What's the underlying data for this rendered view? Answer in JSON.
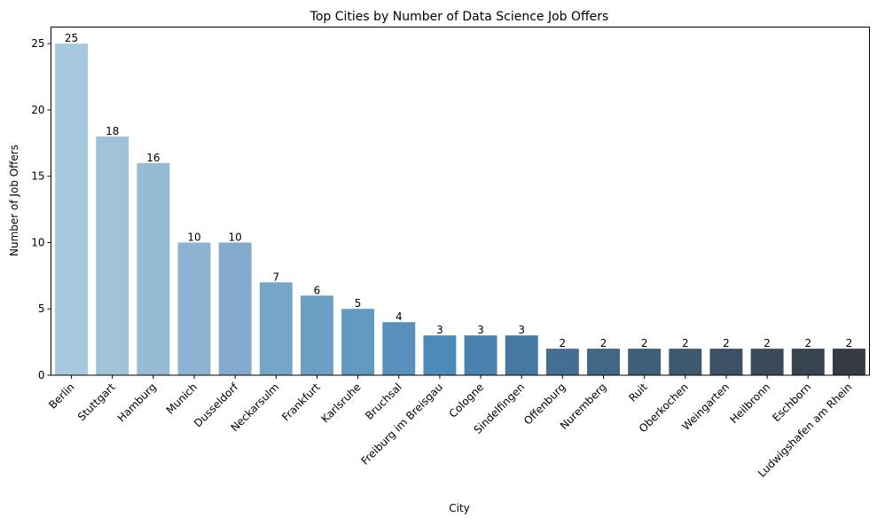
{
  "chart_data": {
    "type": "bar",
    "title": "Top Cities by Number of Data Science Job Offers",
    "xlabel": "City",
    "ylabel": "Number of Job Offers",
    "ylim": [
      0,
      26.25
    ],
    "yticks": [
      0,
      5,
      10,
      15,
      20,
      25
    ],
    "grid": false,
    "categories": [
      "Berlin",
      "Stuttgart",
      "Hamburg",
      "Munich",
      "Dusseldorf",
      "Neckarsulm",
      "Frankfurt",
      "Karlsruhe",
      "Bruchsal",
      "Freiburg im Breisgau",
      "Cologne",
      "Sindelfingen",
      "Offenburg",
      "Nuremberg",
      "Ruit",
      "Oberkochen",
      "Weingarten",
      "Heilbronn",
      "Eschborn",
      "Ludwigshafen am Rhein"
    ],
    "values": [
      25,
      18,
      16,
      10,
      10,
      7,
      6,
      5,
      4,
      3,
      3,
      3,
      2,
      2,
      2,
      2,
      2,
      2,
      2,
      2
    ],
    "colors": [
      "#a6c9df",
      "#9fc2d9",
      "#97bad5",
      "#8cb3d1",
      "#84abcd",
      "#76a6c7",
      "#6c9fc4",
      "#6299c1",
      "#5890bc",
      "#4d89b9",
      "#4a82ae",
      "#4679a2",
      "#446f92",
      "#416784",
      "#3f6078",
      "#3e586d",
      "#3c5163",
      "#3a4a59",
      "#384350",
      "#353b42"
    ]
  }
}
